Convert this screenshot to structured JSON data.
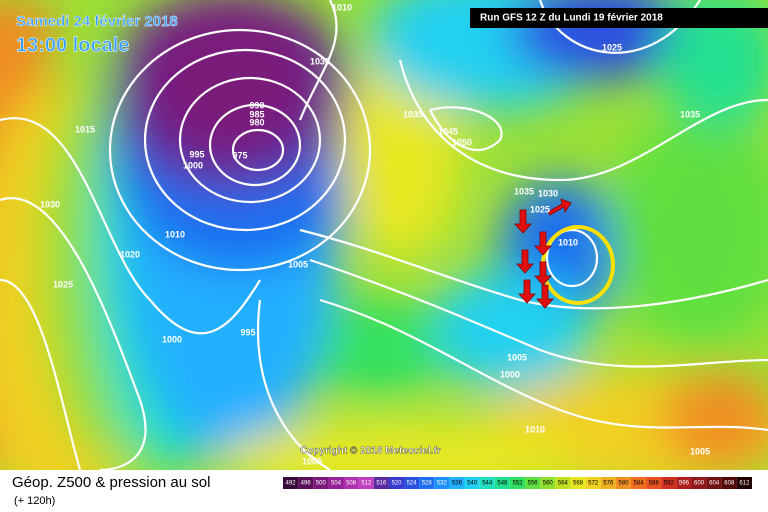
{
  "header": {
    "date": "Samedi 24 février 2018",
    "time": "13:00 locale",
    "run": "Run GFS 12 Z du Lundi 19 février 2018"
  },
  "map": {
    "copyright": "Copyright © 2018 Meteociel.fr",
    "isobar_labels": [
      "1010",
      "1030",
      "1015",
      "1030",
      "1025",
      "1020",
      "1010",
      "1000",
      "995",
      "1005",
      "990",
      "985",
      "980",
      "995",
      "1000",
      "975",
      "1035",
      "1045",
      "1050",
      "1035",
      "1030",
      "1025",
      "1010",
      "1035",
      "1025",
      "1005",
      "1000",
      "1010",
      "1005",
      "1005"
    ]
  },
  "legend": {
    "title": "Géop. Z500 & pression au sol",
    "lead": "(+ 120h)",
    "scale": [
      492,
      496,
      500,
      504,
      508,
      512,
      516,
      520,
      524,
      528,
      532,
      536,
      540,
      544,
      548,
      552,
      556,
      560,
      564,
      568,
      572,
      576,
      580,
      584,
      588,
      592,
      596,
      600,
      604,
      608,
      612
    ],
    "colors": [
      "#3a0a3a",
      "#5a0f5a",
      "#7a1a7a",
      "#962096",
      "#b030b0",
      "#c040c0",
      "#5a2aa0",
      "#3a3ad0",
      "#2a50e0",
      "#1e6ef0",
      "#1e90ff",
      "#20b0ff",
      "#20d0f0",
      "#20e0c0",
      "#20e090",
      "#30e060",
      "#60e040",
      "#90e030",
      "#c0e020",
      "#e8e820",
      "#f0d020",
      "#f0b020",
      "#f09020",
      "#f07020",
      "#e85020",
      "#d03020",
      "#b02020",
      "#901818",
      "#701010",
      "#500808",
      "#200000"
    ]
  }
}
